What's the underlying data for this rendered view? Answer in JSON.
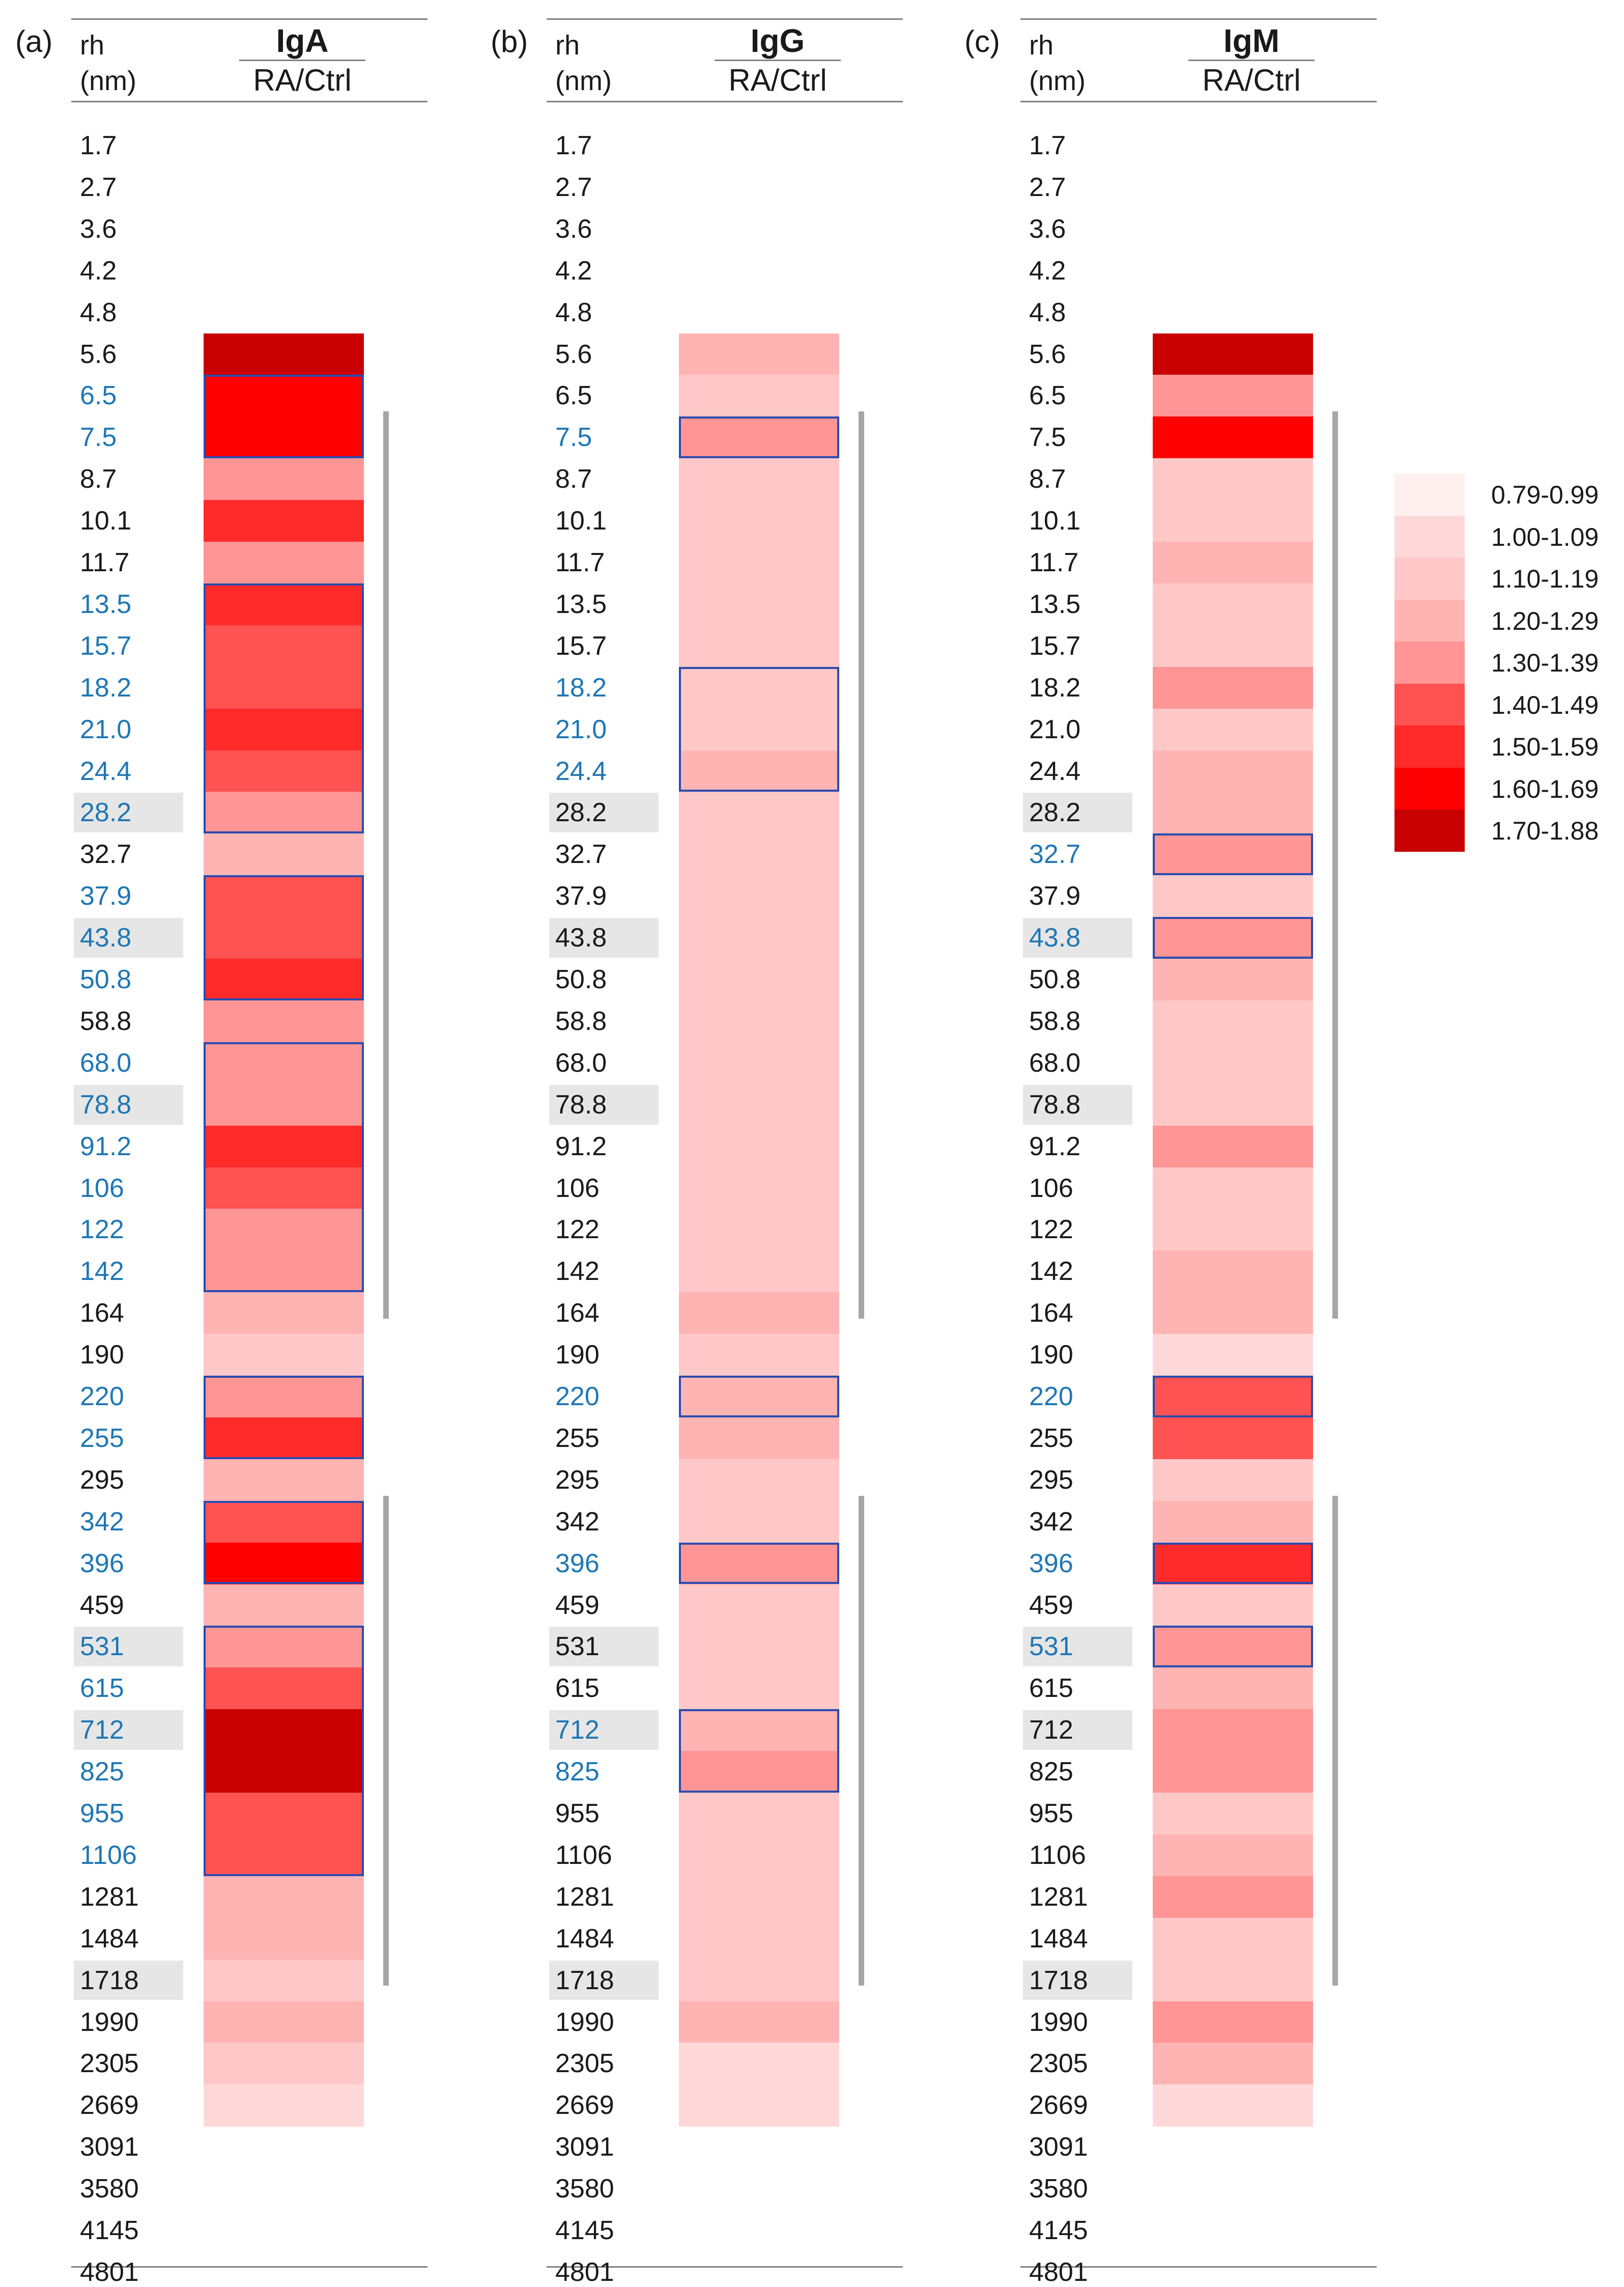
{
  "row_labels": [
    "1.7",
    "2.7",
    "3.6",
    "4.2",
    "4.8",
    "5.6",
    "6.5",
    "7.5",
    "8.7",
    "10.1",
    "11.7",
    "13.5",
    "15.7",
    "18.2",
    "21.0",
    "24.4",
    "28.2",
    "32.7",
    "37.9",
    "43.8",
    "50.8",
    "58.8",
    "68.0",
    "78.8",
    "91.2",
    "106",
    "122",
    "142",
    "164",
    "190",
    "220",
    "255",
    "295",
    "342",
    "396",
    "459",
    "531",
    "615",
    "712",
    "825",
    "955",
    "1106",
    "1281",
    "1484",
    "1718",
    "1990",
    "2305",
    "2669",
    "3091",
    "3580",
    "4145",
    "4801"
  ],
  "shaded_rows": [
    16,
    19,
    23,
    36,
    38,
    44
  ],
  "color_scale": {
    "bins": [
      "0.79-0.99",
      "1.00-1.09",
      "1.10-1.19",
      "1.20-1.29",
      "1.30-1.39",
      "1.40-1.49",
      "1.50-1.59",
      "1.60-1.69",
      "1.70-1.88"
    ],
    "colors": [
      "#fff0f0",
      "#ffd9d9",
      "#ffc8c8",
      "#ffb4b4",
      "#ff9595",
      "#ff5252",
      "#ff2a2a",
      "#ff0000",
      "#c80000"
    ]
  },
  "chart_data": [
    {
      "type": "heatmap",
      "panel": "(a)",
      "title": "IgA",
      "column_label": "RA/Ctrl",
      "row_header": [
        "rh",
        "(nm)"
      ],
      "bins": [
        null,
        null,
        null,
        null,
        null,
        8,
        7,
        7,
        4,
        6,
        4,
        6,
        5,
        5,
        6,
        5,
        4,
        3,
        5,
        5,
        6,
        4,
        4,
        4,
        6,
        5,
        4,
        4,
        3,
        2,
        4,
        6,
        3,
        5,
        7,
        3,
        4,
        5,
        8,
        8,
        5,
        5,
        3,
        3,
        2,
        3,
        2,
        1,
        null,
        null,
        null,
        null
      ],
      "significant_rows": [
        6,
        7,
        11,
        12,
        13,
        14,
        15,
        16,
        18,
        19,
        20,
        22,
        23,
        24,
        25,
        26,
        27,
        30,
        31,
        33,
        34,
        36,
        37,
        38,
        39,
        40,
        41
      ],
      "boxes": [
        [
          6,
          7
        ],
        [
          11,
          16
        ],
        [
          18,
          20
        ],
        [
          22,
          27
        ],
        [
          30,
          31
        ],
        [
          33,
          34
        ],
        [
          36,
          41
        ]
      ],
      "brackets": [
        [
          7,
          28
        ],
        [
          33,
          44
        ]
      ]
    },
    {
      "type": "heatmap",
      "panel": "(b)",
      "title": "IgG",
      "column_label": "RA/Ctrl",
      "row_header": [
        "rh",
        "(nm)"
      ],
      "bins": [
        null,
        null,
        null,
        null,
        null,
        3,
        2,
        4,
        2,
        2,
        2,
        2,
        2,
        2,
        2,
        3,
        2,
        2,
        2,
        2,
        2,
        2,
        2,
        2,
        2,
        2,
        2,
        2,
        3,
        2,
        3,
        3,
        2,
        2,
        4,
        2,
        2,
        2,
        3,
        4,
        2,
        2,
        2,
        2,
        2,
        3,
        1,
        1,
        null,
        null,
        null,
        null
      ],
      "significant_rows": [
        7,
        13,
        14,
        15,
        30,
        34,
        38,
        39
      ],
      "boxes": [
        [
          7,
          7
        ],
        [
          13,
          15
        ],
        [
          30,
          30
        ],
        [
          34,
          34
        ],
        [
          38,
          39
        ]
      ],
      "brackets": [
        [
          7,
          28
        ],
        [
          33,
          44
        ]
      ]
    },
    {
      "type": "heatmap",
      "panel": "(c)",
      "title": "IgM",
      "column_label": "RA/Ctrl",
      "row_header": [
        "rh",
        "(nm)"
      ],
      "bins": [
        null,
        null,
        null,
        null,
        null,
        8,
        4,
        7,
        2,
        2,
        3,
        2,
        2,
        4,
        2,
        3,
        3,
        4,
        2,
        4,
        3,
        2,
        2,
        2,
        4,
        2,
        2,
        3,
        3,
        1,
        5,
        5,
        2,
        3,
        6,
        2,
        4,
        3,
        4,
        4,
        2,
        3,
        4,
        2,
        2,
        4,
        3,
        1,
        null,
        null,
        null,
        null
      ],
      "significant_rows": [
        17,
        19,
        30,
        34,
        36
      ],
      "boxes": [
        [
          17,
          17
        ],
        [
          19,
          19
        ],
        [
          30,
          30
        ],
        [
          34,
          34
        ],
        [
          36,
          36
        ]
      ],
      "brackets": [
        [
          7,
          28
        ],
        [
          33,
          44
        ]
      ]
    }
  ]
}
